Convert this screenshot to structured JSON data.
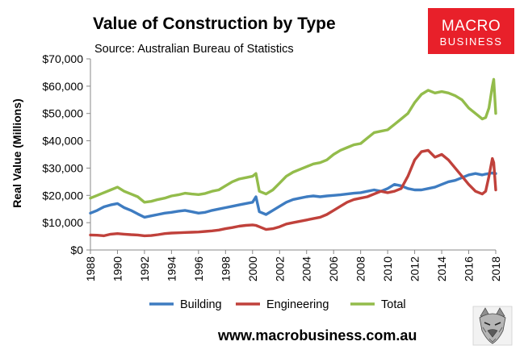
{
  "logo": {
    "line1": "MACRO",
    "line2": "BUSINESS",
    "color": "#e8202a"
  },
  "website": "www.macrobusiness.com.au",
  "mascot_icon": "wolf-mascot-icon",
  "chart_data": {
    "type": "line",
    "title": "Value of Construction by Type",
    "subtitle": "Source: Australian Bureau of Statistics",
    "xlabel": "",
    "ylabel": "Real Value (Millions)",
    "xlim": [
      1988,
      2018
    ],
    "ylim": [
      0,
      70000
    ],
    "grid": false,
    "legend_position": "bottom",
    "x_ticks": [
      "1988",
      "1990",
      "1992",
      "1994",
      "1996",
      "1998",
      "2000",
      "2002",
      "2004",
      "2006",
      "2008",
      "2010",
      "2012",
      "2014",
      "2016",
      "2018"
    ],
    "y_ticks": [
      "$0",
      "$10,000",
      "$20,000",
      "$30,000",
      "$40,000",
      "$50,000",
      "$60,000",
      "$70,000"
    ],
    "x": [
      1988.0,
      1988.5,
      1989.0,
      1989.5,
      1990.0,
      1990.5,
      1991.0,
      1991.5,
      1992.0,
      1992.5,
      1993.0,
      1993.5,
      1994.0,
      1994.5,
      1995.0,
      1995.5,
      1996.0,
      1996.5,
      1997.0,
      1997.5,
      1998.0,
      1998.5,
      1999.0,
      1999.5,
      2000.0,
      2000.25,
      2000.5,
      2001.0,
      2001.5,
      2002.0,
      2002.5,
      2003.0,
      2003.5,
      2004.0,
      2004.5,
      2005.0,
      2005.5,
      2006.0,
      2006.5,
      2007.0,
      2007.5,
      2008.0,
      2008.5,
      2009.0,
      2009.5,
      2010.0,
      2010.5,
      2011.0,
      2011.5,
      2012.0,
      2012.5,
      2013.0,
      2013.5,
      2014.0,
      2014.5,
      2015.0,
      2015.5,
      2016.0,
      2016.5,
      2017.0,
      2017.25,
      2017.5,
      2017.75,
      2017.85,
      2018.0
    ],
    "series": [
      {
        "name": "Building",
        "color": "#3e7cc1",
        "values": [
          13500,
          14500,
          15800,
          16500,
          17000,
          15500,
          14500,
          13200,
          12000,
          12500,
          13000,
          13500,
          13800,
          14200,
          14500,
          14000,
          13500,
          13800,
          14500,
          15000,
          15500,
          16000,
          16500,
          17000,
          17500,
          19500,
          14000,
          13000,
          14500,
          16000,
          17500,
          18500,
          19000,
          19500,
          19800,
          19500,
          19800,
          20000,
          20200,
          20500,
          20800,
          21000,
          21500,
          22000,
          21500,
          22500,
          24000,
          23500,
          22500,
          22000,
          22000,
          22500,
          23000,
          24000,
          25000,
          25500,
          26500,
          27500,
          28000,
          27500,
          27800,
          28000,
          28200,
          28000,
          28000
        ]
      },
      {
        "name": "Engineering",
        "color": "#c0413b",
        "values": [
          5500,
          5400,
          5200,
          5800,
          6000,
          5800,
          5600,
          5500,
          5200,
          5300,
          5600,
          6000,
          6200,
          6300,
          6400,
          6500,
          6600,
          6800,
          7000,
          7300,
          7800,
          8200,
          8700,
          9000,
          9200,
          9000,
          8500,
          7500,
          7800,
          8500,
          9500,
          10000,
          10500,
          11000,
          11500,
          12000,
          13000,
          14500,
          16000,
          17500,
          18500,
          19000,
          19500,
          20500,
          21500,
          21000,
          21500,
          22500,
          27000,
          33000,
          36000,
          36500,
          34000,
          35000,
          33000,
          30000,
          27000,
          24000,
          21500,
          20500,
          21500,
          27000,
          33500,
          32000,
          22000
        ]
      },
      {
        "name": "Total",
        "color": "#93bc4b",
        "values": [
          19000,
          20000,
          21000,
          22000,
          23000,
          21500,
          20500,
          19500,
          17500,
          17800,
          18500,
          19000,
          19800,
          20200,
          20800,
          20500,
          20300,
          20700,
          21500,
          22000,
          23500,
          25000,
          26000,
          26500,
          27000,
          28000,
          21500,
          20500,
          22000,
          24500,
          27000,
          28500,
          29500,
          30500,
          31500,
          32000,
          33000,
          35000,
          36500,
          37500,
          38500,
          39000,
          41000,
          43000,
          43500,
          44000,
          46000,
          48000,
          50000,
          54000,
          57000,
          58500,
          57500,
          58000,
          57500,
          56500,
          55000,
          52000,
          50000,
          48000,
          48500,
          52000,
          60000,
          62500,
          50000
        ]
      }
    ]
  }
}
